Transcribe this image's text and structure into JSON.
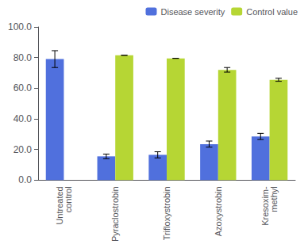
{
  "chart_data": {
    "type": "bar",
    "categories": [
      "Untreated\ncontrol",
      "Pyraclostrobin",
      "Trifloxystrobin",
      "Azoxystrobin",
      "Kresoxim-\nmethyl"
    ],
    "series": [
      {
        "name": "Disease severity",
        "values": [
          79.0,
          15.5,
          16.5,
          23.5,
          28.5
        ],
        "errors": [
          5.5,
          1.5,
          2.0,
          2.0,
          2.0
        ]
      },
      {
        "name": "Control value",
        "values": [
          null,
          81.5,
          79.5,
          72.0,
          65.5
        ],
        "errors": [
          null,
          0,
          0,
          1.5,
          1.0
        ]
      }
    ],
    "ylim": [
      0,
      100
    ],
    "yticks": [
      {
        "value": 0,
        "label": "0.0"
      },
      {
        "value": 20,
        "label": "20.0"
      },
      {
        "value": 40,
        "label": "40.0"
      },
      {
        "value": 60,
        "label": "60.0"
      },
      {
        "value": 80,
        "label": "80.0"
      },
      {
        "value": 100,
        "label": "100.0"
      }
    ],
    "grid": false,
    "legend": "upper right"
  }
}
